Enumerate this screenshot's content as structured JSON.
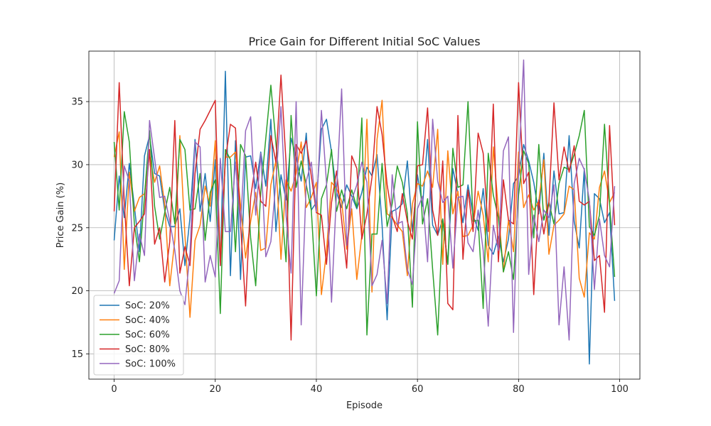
{
  "chart_data": {
    "type": "line",
    "title": "Price Gain for Different Initial SoC Values",
    "xlabel": "Episode",
    "ylabel": "Price Gain (%)",
    "xlim": [
      -5,
      104
    ],
    "ylim": [
      13,
      39
    ],
    "xticks": [
      0,
      20,
      40,
      60,
      80,
      100
    ],
    "yticks": [
      15,
      20,
      25,
      30,
      35
    ],
    "grid": true,
    "legend_position": "lower-left",
    "series": [
      {
        "name": "SoC: 20%",
        "color": "#1f77b4",
        "values": [
          24.0,
          29.1,
          25.8,
          30.1,
          26.7,
          23.1,
          30.7,
          32.3,
          29.3,
          29.1,
          26.4,
          25.1,
          25.1,
          26.5,
          22.0,
          25.8,
          32.0,
          26.3,
          29.3,
          25.5,
          30.4,
          22.0,
          37.4,
          21.2,
          31.9,
          20.9,
          30.6,
          30.7,
          28.1,
          31.0,
          28.3,
          33.6,
          24.7,
          29.2,
          27.2,
          32.1,
          30.6,
          28.7,
          32.5,
          26.4,
          27.0,
          32.8,
          33.6,
          31.0,
          27.8,
          26.6,
          28.4,
          27.5,
          26.5,
          27.8,
          29.8,
          29.1,
          30.8,
          25.2,
          17.7,
          26.3,
          26.5,
          26.9,
          30.3,
          24.7,
          29.2,
          26.7,
          32.0,
          25.2,
          24.4,
          25.7,
          22.1,
          29.7,
          27.7,
          25.4,
          28.4,
          26.0,
          24.8,
          28.1,
          23.6,
          22.9,
          24.3,
          22.3,
          24.1,
          28.5,
          29.1,
          31.6,
          30.3,
          28.6,
          26.1,
          30.9,
          24.4,
          29.5,
          26.1,
          26.2,
          32.3,
          25.5,
          23.4,
          29.7,
          14.2,
          27.7,
          27.3,
          25.4,
          26.2,
          19.2
        ]
      },
      {
        "name": "SoC: 40%",
        "color": "#ff7f0e",
        "values": [
          30.6,
          32.6,
          21.7,
          29.4,
          26.3,
          27.4,
          27.7,
          30.8,
          28.6,
          29.9,
          26.8,
          20.4,
          24.0,
          32.3,
          24.4,
          17.9,
          24.0,
          25.2,
          28.3,
          26.7,
          31.9,
          22.5,
          30.6,
          30.6,
          31.0,
          26.8,
          22.6,
          25.5,
          27.8,
          23.2,
          23.4,
          28.4,
          30.3,
          22.5,
          28.8,
          27.9,
          29.3,
          31.8,
          26.6,
          27.4,
          28.6,
          19.7,
          23.1,
          28.6,
          28.1,
          27.1,
          23.3,
          26.5,
          20.9,
          24.4,
          33.6,
          19.9,
          32.0,
          35.1,
          26.1,
          25.8,
          25.2,
          24.7,
          21.2,
          26.9,
          28.5,
          28.3,
          29.5,
          28.2,
          32.8,
          22.1,
          31.1,
          26.1,
          27.9,
          24.3,
          24.4,
          25.2,
          27.9,
          26.0,
          22.3,
          31.4,
          26.4,
          21.5,
          25.6,
          23.1,
          31.0,
          26.6,
          27.6,
          26.4,
          27.1,
          30.4,
          22.9,
          25.2,
          25.6,
          26.1,
          28.3,
          28.0,
          21.0,
          19.5,
          24.6,
          24.1,
          28.2,
          29.5,
          27.0,
          27.8
        ]
      },
      {
        "name": "SoC: 60%",
        "color": "#2ca02c",
        "values": [
          31.8,
          26.4,
          34.2,
          31.8,
          25.3,
          22.3,
          27.5,
          32.7,
          26.7,
          24.1,
          26.2,
          28.2,
          25.3,
          32.0,
          31.2,
          26.4,
          26.5,
          29.3,
          24.0,
          27.8,
          28.8,
          18.2,
          31.2,
          30.4,
          23.1,
          31.6,
          30.7,
          24.2,
          20.4,
          27.8,
          32.1,
          36.3,
          31.7,
          27.4,
          22.3,
          33.9,
          28.2,
          30.3,
          28.4,
          26.4,
          19.6,
          27.3,
          28.4,
          31.2,
          26.3,
          28.0,
          26.5,
          28.0,
          26.6,
          33.7,
          16.5,
          24.5,
          24.5,
          30.1,
          25.1,
          26.9,
          29.9,
          28.6,
          26.1,
          18.7,
          33.4,
          25.3,
          27.3,
          21.7,
          16.5,
          25.7,
          22.1,
          31.3,
          28.2,
          28.4,
          35.0,
          25.5,
          25.6,
          18.6,
          30.9,
          27.6,
          25.8,
          21.5,
          23.1,
          20.9,
          27.6,
          31.1,
          30.1,
          24.2,
          31.6,
          25.6,
          27.0,
          25.3,
          28.5,
          29.8,
          29.6,
          30.8,
          32.3,
          34.3,
          25.1,
          24.4,
          26.0,
          33.2,
          26.9,
          21.1
        ]
      },
      {
        "name": "SoC: 80%",
        "color": "#d62728",
        "values": [
          26.3,
          36.5,
          27.1,
          20.4,
          25.0,
          25.5,
          26.1,
          31.2,
          23.7,
          25.0,
          20.7,
          23.9,
          33.5,
          21.4,
          23.5,
          22.0,
          29.3,
          32.8,
          33.5,
          34.3,
          35.1,
          22.0,
          30.4,
          33.2,
          32.9,
          25.3,
          18.8,
          27.4,
          30.2,
          27.1,
          26.7,
          32.3,
          30.2,
          37.1,
          30.2,
          16.1,
          31.6,
          30.9,
          31.9,
          29.1,
          26.2,
          26.0,
          22.1,
          27.0,
          29.5,
          25.6,
          21.8,
          30.7,
          29.7,
          24.1,
          26.1,
          29.0,
          34.6,
          32.4,
          28.4,
          25.9,
          24.7,
          27.7,
          25.5,
          24.1,
          29.9,
          30.0,
          34.5,
          26.4,
          24.4,
          30.3,
          19.0,
          18.5,
          33.9,
          22.5,
          28.0,
          24.7,
          32.5,
          30.9,
          24.7,
          34.8,
          22.3,
          28.8,
          25.6,
          25.3,
          36.5,
          28.5,
          29.4,
          19.7,
          27.2,
          24.5,
          27.0,
          34.9,
          28.8,
          31.4,
          29.4,
          31.5,
          27.1,
          26.8,
          27.1,
          22.4,
          22.8,
          18.3,
          33.1,
          25.2
        ]
      },
      {
        "name": "SoC: 100%",
        "color": "#9467bd",
        "values": [
          19.8,
          20.8,
          29.9,
          28.7,
          20.8,
          24.5,
          22.8,
          33.5,
          30.5,
          27.4,
          27.5,
          25.5,
          23.2,
          20.0,
          18.9,
          23.0,
          31.8,
          31.4,
          20.7,
          22.8,
          21.1,
          30.5,
          24.7,
          24.7,
          30.2,
          25.1,
          32.7,
          33.8,
          26.0,
          30.9,
          22.7,
          23.9,
          28.7,
          34.6,
          26.0,
          21.4,
          35.0,
          17.3,
          28.7,
          30.2,
          26.3,
          34.3,
          28.6,
          19.1,
          27.9,
          36.0,
          23.6,
          27.2,
          28.4,
          30.2,
          28.6,
          20.4,
          21.3,
          24.0,
          19.0,
          29.2,
          25.3,
          25.5,
          21.7,
          20.5,
          26.5,
          27.5,
          22.3,
          33.6,
          28.7,
          27.0,
          27.5,
          21.8,
          27.4,
          27.5,
          23.8,
          23.1,
          26.4,
          23.2,
          17.2,
          25.2,
          23.2,
          31.1,
          32.2,
          16.7,
          29.5,
          38.3,
          21.3,
          26.0,
          23.9,
          26.4,
          25.8,
          28.4,
          17.3,
          21.9,
          16.1,
          28.5,
          30.5,
          29.6,
          27.2,
          20.1,
          25.7,
          22.8,
          21.9,
          28.3
        ]
      }
    ]
  }
}
